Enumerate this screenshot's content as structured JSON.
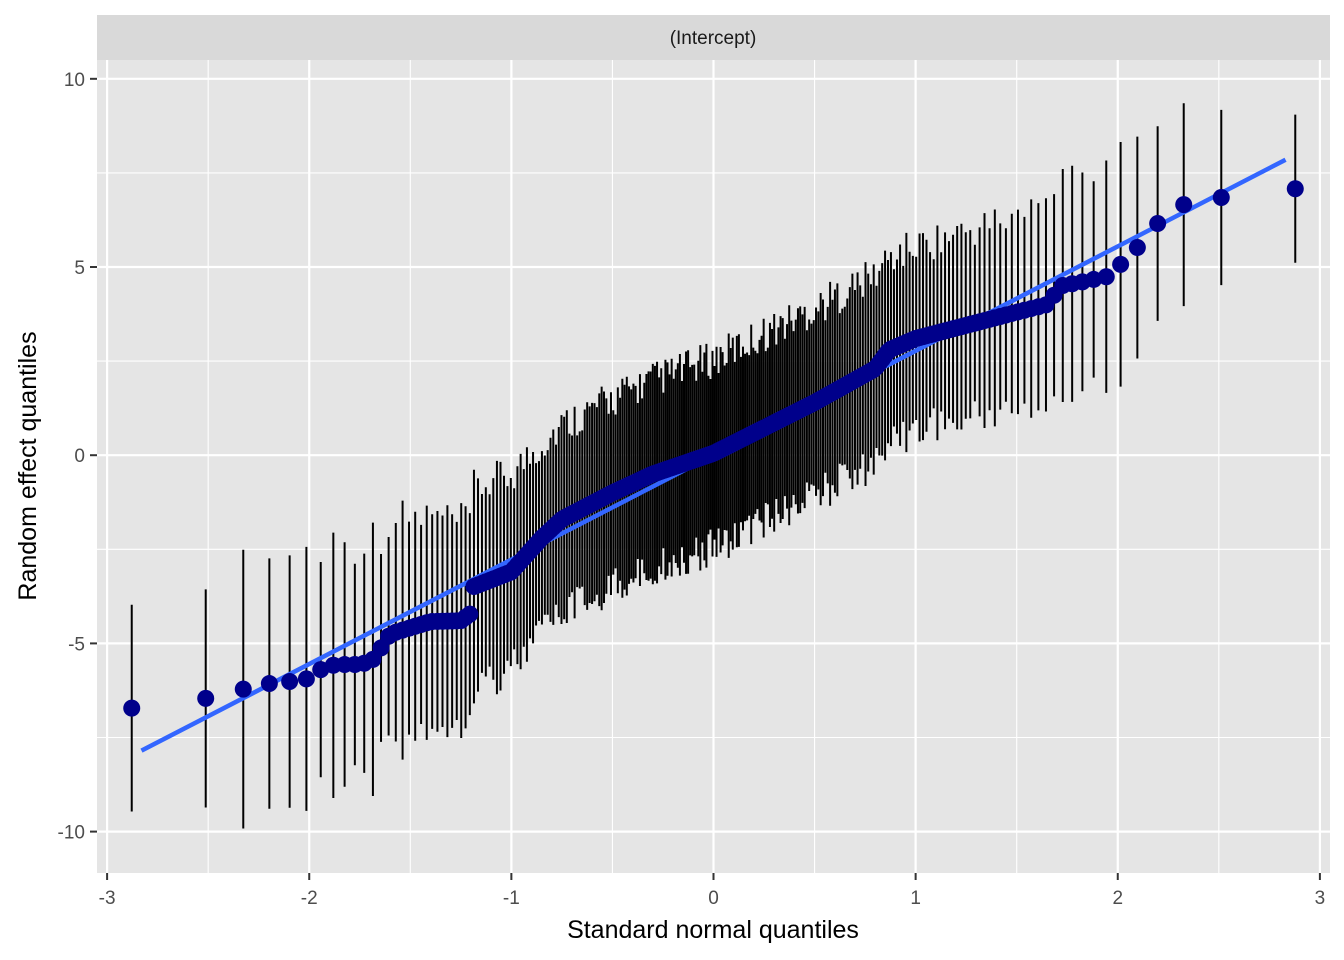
{
  "chart_data": {
    "type": "scatter",
    "facet_label": "(Intercept)",
    "xlabel": "Standard normal quantiles",
    "ylabel": "Random effect quantiles",
    "xlim": [
      -3.05,
      3.05
    ],
    "ylim": [
      -11.1,
      10.5
    ],
    "x_ticks": [
      -3,
      -2,
      -1,
      0,
      1,
      2,
      3
    ],
    "x_tick_labels": [
      "-3",
      "-2",
      "-1",
      "0",
      "1",
      "2",
      "3"
    ],
    "y_ticks": [
      -10,
      -5,
      0,
      5,
      10
    ],
    "y_tick_labels": [
      "-10",
      "-5",
      "0",
      "5",
      "10"
    ],
    "grid": true,
    "colors": {
      "panel_background": "#e5e5e5",
      "grid": "#ffffff",
      "strip_background": "#d9d9d9",
      "points": "#00008b",
      "reference_line": "#3366ff",
      "error_bars": "#000000"
    },
    "reference_line": {
      "x": [
        -2.83,
        2.83
      ],
      "y": [
        -7.85,
        7.85
      ]
    },
    "points_anchor": {
      "x": [
        -2.83,
        -2.45,
        -2.26,
        -2.13,
        -2.03,
        -1.95,
        -1.88,
        -1.82,
        -1.77,
        -1.72,
        -1.68,
        -1.6,
        -1.4,
        -1.25,
        -1.2,
        -1.19,
        -1.0,
        -0.85,
        -0.75,
        -0.5,
        -0.3,
        0.0,
        0.5,
        0.8,
        0.87,
        1.0,
        1.5,
        1.65,
        1.72,
        1.82,
        1.95,
        2.03,
        2.13,
        2.26,
        2.45,
        2.83
      ],
      "y": [
        -6.72,
        -6.41,
        -6.11,
        -6.02,
        -6.0,
        -5.71,
        -5.58,
        -5.56,
        -5.56,
        -5.52,
        -5.41,
        -4.75,
        -4.42,
        -4.4,
        -4.2,
        -3.5,
        -3.1,
        -2.2,
        -1.7,
        -1.0,
        -0.5,
        0.05,
        1.4,
        2.3,
        2.8,
        3.1,
        3.8,
        4.0,
        4.5,
        4.6,
        4.75,
        5.15,
        5.7,
        6.58,
        6.8,
        7.08
      ]
    },
    "error_bars": {
      "sd": [
        2.35,
        3.75,
        3.55,
        3.45,
        3.35,
        3.3,
        3.3,
        3.3,
        3.3,
        3.35,
        3.2,
        3.0,
        2.8,
        2.6,
        2.6,
        2.6,
        2.6,
        2.5,
        2.5,
        2.5,
        2.5,
        2.5,
        2.5,
        2.5,
        2.45,
        2.45,
        2.55,
        2.7,
        2.9,
        2.9,
        3.3,
        3.0,
        3.4,
        2.9,
        2.45,
        2.2
      ]
    },
    "n_points": 250
  }
}
